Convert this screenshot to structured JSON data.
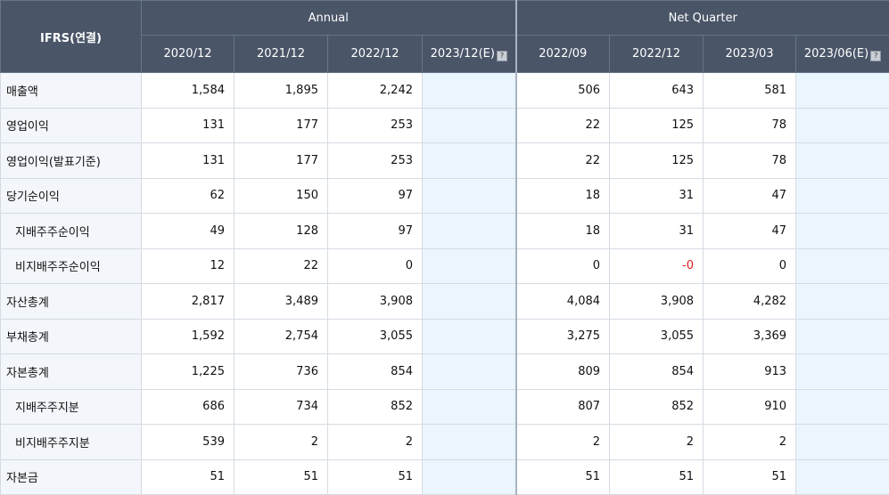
{
  "header": {
    "corner": "IFRS(연결)",
    "groups": [
      "Annual",
      "Net Quarter"
    ],
    "annual_cols": [
      "2020/12",
      "2021/12",
      "2022/12",
      "2023/12(E)"
    ],
    "quarter_cols": [
      "2022/09",
      "2022/12",
      "2023/03",
      "2023/06(E)"
    ]
  },
  "rows": [
    {
      "label": "매출액",
      "sub": false,
      "values": [
        "1,584",
        "1,895",
        "2,242",
        "",
        "506",
        "643",
        "581",
        ""
      ]
    },
    {
      "label": "영업이익",
      "sub": false,
      "values": [
        "131",
        "177",
        "253",
        "",
        "22",
        "125",
        "78",
        ""
      ]
    },
    {
      "label": "영업이익(발표기준)",
      "sub": false,
      "values": [
        "131",
        "177",
        "253",
        "",
        "22",
        "125",
        "78",
        ""
      ]
    },
    {
      "label": "당기순이익",
      "sub": false,
      "values": [
        "62",
        "150",
        "97",
        "",
        "18",
        "31",
        "47",
        ""
      ]
    },
    {
      "label": "지배주주순이익",
      "sub": true,
      "values": [
        "49",
        "128",
        "97",
        "",
        "18",
        "31",
        "47",
        ""
      ]
    },
    {
      "label": "비지배주주순이익",
      "sub": true,
      "values": [
        "12",
        "22",
        "0",
        "",
        "0",
        "-0",
        "0",
        ""
      ]
    },
    {
      "label": "자산총계",
      "sub": false,
      "values": [
        "2,817",
        "3,489",
        "3,908",
        "",
        "4,084",
        "3,908",
        "4,282",
        ""
      ]
    },
    {
      "label": "부채총계",
      "sub": false,
      "values": [
        "1,592",
        "2,754",
        "3,055",
        "",
        "3,275",
        "3,055",
        "3,369",
        ""
      ]
    },
    {
      "label": "자본총계",
      "sub": false,
      "values": [
        "1,225",
        "736",
        "854",
        "",
        "809",
        "854",
        "913",
        ""
      ]
    },
    {
      "label": "지배주주지분",
      "sub": true,
      "values": [
        "686",
        "734",
        "852",
        "",
        "807",
        "852",
        "910",
        ""
      ]
    },
    {
      "label": "비지배주주지분",
      "sub": true,
      "values": [
        "539",
        "2",
        "2",
        "",
        "2",
        "2",
        "2",
        ""
      ]
    },
    {
      "label": "자본금",
      "sub": false,
      "values": [
        "51",
        "51",
        "51",
        "",
        "51",
        "51",
        "51",
        ""
      ]
    }
  ],
  "colors": {
    "header_bg": "#4a5568",
    "estimate_bg": "#eaf5fd",
    "negative": "#e02020",
    "label_bg": "#f3f6fb"
  },
  "icons": {
    "estimate_info": "question-icon"
  }
}
